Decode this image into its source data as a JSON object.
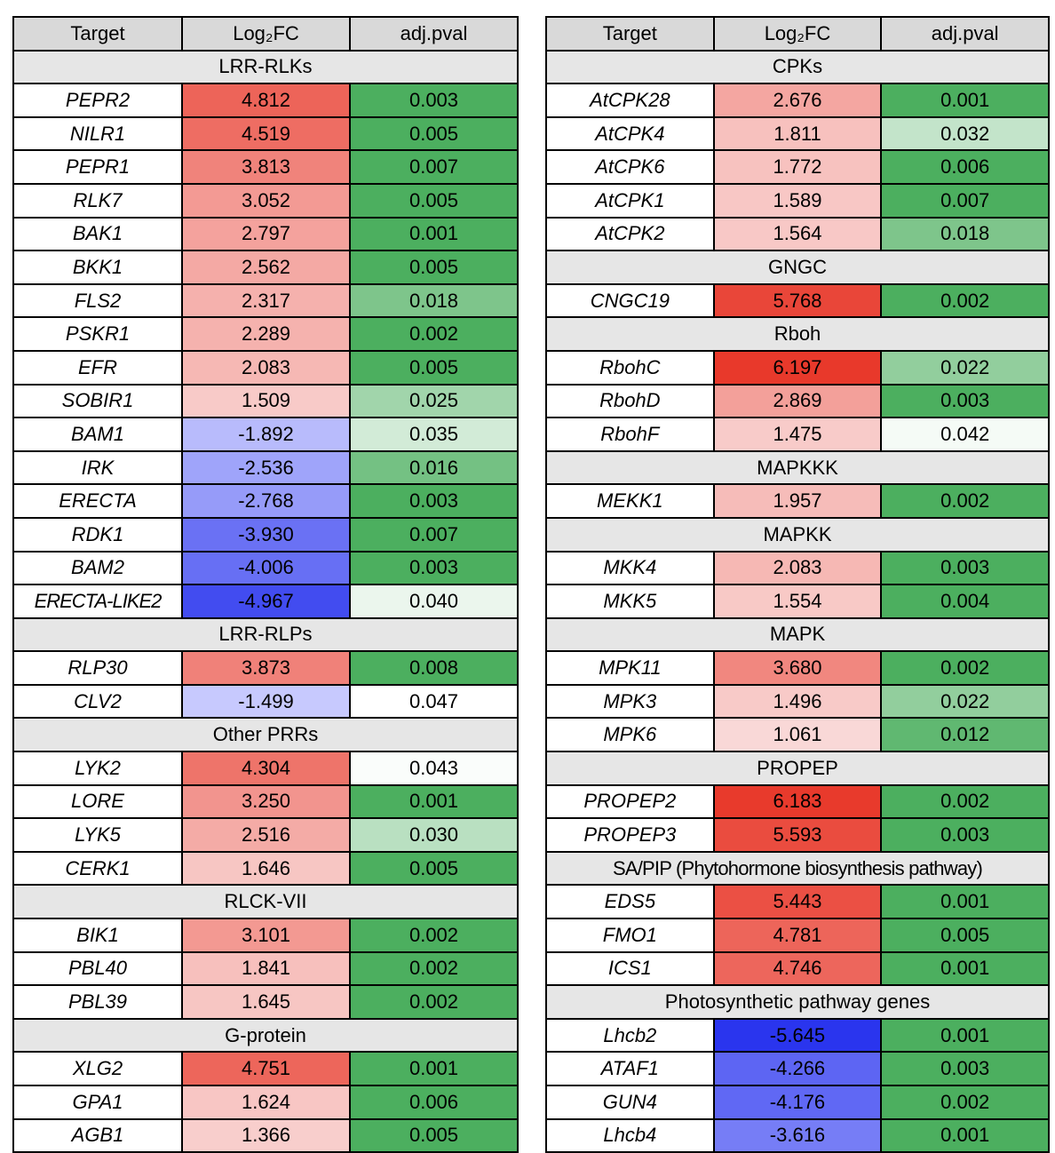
{
  "chart_data": {
    "type": "table",
    "columns": [
      "Target",
      "Log₂FC",
      "adj.pval"
    ],
    "tables": [
      {
        "groups": [
          {
            "name": "LRR-RLKs",
            "rows": [
              {
                "target": "PEPR2",
                "log2fc": "4.812",
                "pval": "0.003"
              },
              {
                "target": "NILR1",
                "log2fc": "4.519",
                "pval": "0.005"
              },
              {
                "target": "PEPR1",
                "log2fc": "3.813",
                "pval": "0.007"
              },
              {
                "target": "RLK7",
                "log2fc": "3.052",
                "pval": "0.005"
              },
              {
                "target": "BAK1",
                "log2fc": "2.797",
                "pval": "0.001"
              },
              {
                "target": "BKK1",
                "log2fc": "2.562",
                "pval": "0.005"
              },
              {
                "target": "FLS2",
                "log2fc": "2.317",
                "pval": "0.018"
              },
              {
                "target": "PSKR1",
                "log2fc": "2.289",
                "pval": "0.002"
              },
              {
                "target": "EFR",
                "log2fc": "2.083",
                "pval": "0.005"
              },
              {
                "target": "SOBIR1",
                "log2fc": "1.509",
                "pval": "0.025"
              },
              {
                "target": "BAM1",
                "log2fc": "-1.892",
                "pval": "0.035"
              },
              {
                "target": "IRK",
                "log2fc": "-2.536",
                "pval": "0.016"
              },
              {
                "target": "ERECTA",
                "log2fc": "-2.768",
                "pval": "0.003"
              },
              {
                "target": "RDK1",
                "log2fc": "-3.930",
                "pval": "0.007"
              },
              {
                "target": "BAM2",
                "log2fc": "-4.006",
                "pval": "0.003"
              },
              {
                "target": "ERECTA-LIKE2",
                "log2fc": "-4.967",
                "pval": "0.040"
              }
            ]
          },
          {
            "name": "LRR-RLPs",
            "rows": [
              {
                "target": "RLP30",
                "log2fc": "3.873",
                "pval": "0.008"
              },
              {
                "target": "CLV2",
                "log2fc": "-1.499",
                "pval": "0.047"
              }
            ]
          },
          {
            "name": "Other PRRs",
            "rows": [
              {
                "target": "LYK2",
                "log2fc": "4.304",
                "pval": "0.043"
              },
              {
                "target": "LORE",
                "log2fc": "3.250",
                "pval": "0.001"
              },
              {
                "target": "LYK5",
                "log2fc": "2.516",
                "pval": "0.030"
              },
              {
                "target": "CERK1",
                "log2fc": "1.646",
                "pval": "0.005"
              }
            ]
          },
          {
            "name": "RLCK-VII",
            "rows": [
              {
                "target": "BIK1",
                "log2fc": "3.101",
                "pval": "0.002"
              },
              {
                "target": "PBL40",
                "log2fc": "1.841",
                "pval": "0.002"
              },
              {
                "target": "PBL39",
                "log2fc": "1.645",
                "pval": "0.002"
              }
            ]
          },
          {
            "name": "G-protein",
            "rows": [
              {
                "target": "XLG2",
                "log2fc": "4.751",
                "pval": "0.001"
              },
              {
                "target": "GPA1",
                "log2fc": "1.624",
                "pval": "0.006"
              },
              {
                "target": "AGB1",
                "log2fc": "1.366",
                "pval": "0.005"
              }
            ]
          }
        ]
      },
      {
        "groups": [
          {
            "name": "CPKs",
            "rows": [
              {
                "target": "AtCPK28",
                "log2fc": "2.676",
                "pval": "0.001"
              },
              {
                "target": "AtCPK4",
                "log2fc": "1.811",
                "pval": "0.032"
              },
              {
                "target": "AtCPK6",
                "log2fc": "1.772",
                "pval": "0.006"
              },
              {
                "target": "AtCPK1",
                "log2fc": "1.589",
                "pval": "0.007"
              },
              {
                "target": "AtCPK2",
                "log2fc": "1.564",
                "pval": "0.018"
              }
            ]
          },
          {
            "name": "GNGC",
            "rows": [
              {
                "target": "CNGC19",
                "log2fc": "5.768",
                "pval": "0.002"
              }
            ]
          },
          {
            "name": "Rboh",
            "rows": [
              {
                "target": "RbohC",
                "log2fc": "6.197",
                "pval": "0.022"
              },
              {
                "target": "RbohD",
                "log2fc": "2.869",
                "pval": "0.003"
              },
              {
                "target": "RbohF",
                "log2fc": "1.475",
                "pval": "0.042"
              }
            ]
          },
          {
            "name": "MAPKKK",
            "rows": [
              {
                "target": "MEKK1",
                "log2fc": "1.957",
                "pval": "0.002"
              }
            ]
          },
          {
            "name": "MAPKK",
            "rows": [
              {
                "target": "MKK4",
                "log2fc": "2.083",
                "pval": "0.003"
              },
              {
                "target": "MKK5",
                "log2fc": "1.554",
                "pval": "0.004"
              }
            ]
          },
          {
            "name": "MAPK",
            "rows": [
              {
                "target": "MPK11",
                "log2fc": "3.680",
                "pval": "0.002"
              },
              {
                "target": "MPK3",
                "log2fc": "1.496",
                "pval": "0.022"
              },
              {
                "target": "MPK6",
                "log2fc": "1.061",
                "pval": "0.012"
              }
            ]
          },
          {
            "name": "PROPEP",
            "rows": [
              {
                "target": "PROPEP2",
                "log2fc": "6.183",
                "pval": "0.002"
              },
              {
                "target": "PROPEP3",
                "log2fc": "5.593",
                "pval": "0.003"
              }
            ]
          },
          {
            "name": "SA/PIP (Phytohormone biosynthesis pathway)",
            "rows": [
              {
                "target": "EDS5",
                "log2fc": "5.443",
                "pval": "0.001"
              },
              {
                "target": "FMO1",
                "log2fc": "4.781",
                "pval": "0.005"
              },
              {
                "target": "ICS1",
                "log2fc": "4.746",
                "pval": "0.001"
              }
            ]
          },
          {
            "name": "Photosynthetic pathway genes",
            "rows": [
              {
                "target": "Lhcb2",
                "log2fc": "-5.645",
                "pval": "0.001"
              },
              {
                "target": "ATAF1",
                "log2fc": "-4.266",
                "pval": "0.003"
              },
              {
                "target": "GUN4",
                "log2fc": "-4.176",
                "pval": "0.002"
              },
              {
                "target": "Lhcb4",
                "log2fc": "-3.616",
                "pval": "0.001"
              }
            ]
          }
        ]
      }
    ]
  },
  "colors": {
    "header_bg": "#d9d9d9",
    "section_bg": "#e6e6e6",
    "fc_positive_max": "#e8392b",
    "fc_negative_max": "#2a35ee",
    "pval_low": "#4caf5f",
    "pval_high": "#ffffff"
  }
}
